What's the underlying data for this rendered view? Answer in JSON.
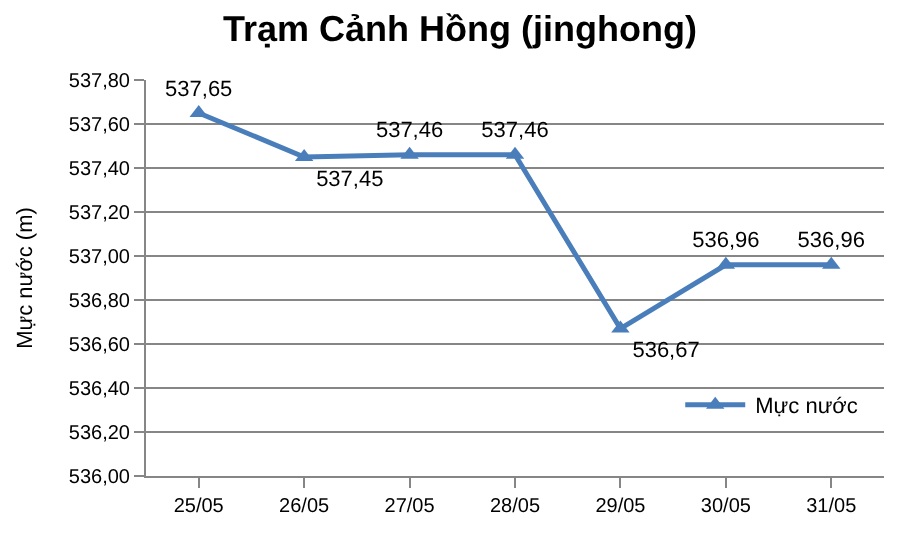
{
  "chart_data": {
    "type": "line",
    "title": "Trạm Cảnh Hồng (jinghong)",
    "ylabel": "Mực nước (m)",
    "categories": [
      "25/05",
      "26/05",
      "27/05",
      "28/05",
      "29/05",
      "30/05",
      "31/05"
    ],
    "series": [
      {
        "name": "Mực nước",
        "color": "#4a7ebb",
        "values": [
          537.65,
          537.45,
          537.46,
          537.46,
          536.67,
          536.96,
          536.96
        ],
        "value_labels": [
          "537,65",
          "537,45",
          "537,46",
          "537,46",
          "536,67",
          "536,96",
          "536,96"
        ]
      }
    ],
    "ylim": [
      536.0,
      537.8
    ],
    "yticks": [
      {
        "value": 536.0,
        "label": "536,00"
      },
      {
        "value": 536.2,
        "label": "536,20"
      },
      {
        "value": 536.4,
        "label": "536,40"
      },
      {
        "value": 536.6,
        "label": "536,60"
      },
      {
        "value": 536.8,
        "label": "536,80"
      },
      {
        "value": 537.0,
        "label": "537,00"
      },
      {
        "value": 537.2,
        "label": "537,20"
      },
      {
        "value": 537.4,
        "label": "537,40"
      },
      {
        "value": 537.6,
        "label": "537,60"
      },
      {
        "value": 537.8,
        "label": "537,80"
      }
    ],
    "grid": "y",
    "legend": "bottom right",
    "marker": "triangle",
    "line_style": "solid"
  }
}
